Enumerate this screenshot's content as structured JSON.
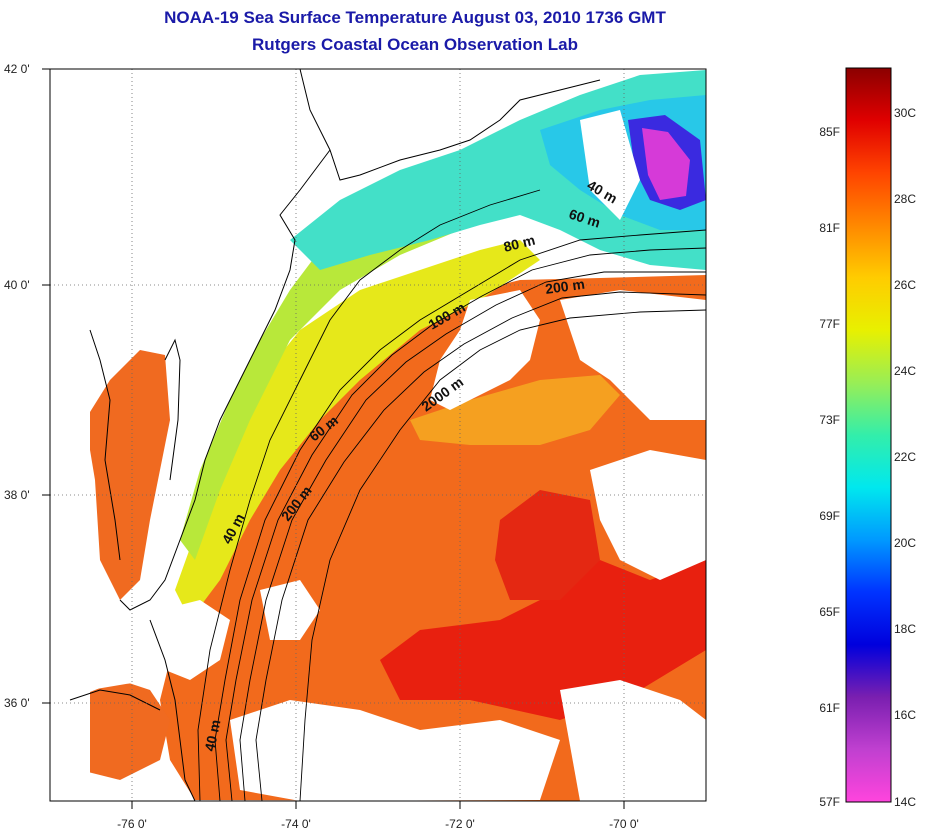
{
  "title_line1": "NOAA-19 Sea Surface Temperature August 03, 2010 1736 GMT",
  "title_line2": "Rutgers Coastal Ocean Observation Lab",
  "map": {
    "lat_labels": [
      "42 0'",
      "40 0'",
      "38 0'",
      "36 0'"
    ],
    "lon_labels": [
      "-76 0'",
      "-74 0'",
      "-72 0'",
      "-70 0'"
    ],
    "contour_labels": [
      "40 m",
      "60 m",
      "80 m",
      "200 m",
      "100 m",
      "60 m",
      "2000 m",
      "200 m",
      "40 m",
      "40 m"
    ],
    "colors": {
      "land_cloud": "#ffffff",
      "coast": "#000000",
      "gridline": "#555555"
    }
  },
  "colorbar": {
    "fahrenheit_labels": [
      "85F",
      "81F",
      "77F",
      "73F",
      "69F",
      "65F",
      "61F",
      "57F"
    ],
    "celsius_labels": [
      "30C",
      "28C",
      "26C",
      "24C",
      "22C",
      "20C",
      "18C",
      "16C",
      "14C"
    ],
    "gradient_colors": [
      "#8b0000",
      "#e00000",
      "#ff4400",
      "#ff8800",
      "#ffcc00",
      "#e8f000",
      "#99ee55",
      "#33eeaa",
      "#00e8ee",
      "#0099ff",
      "#0033ff",
      "#0000dd",
      "#7a1fb0",
      "#c040d0",
      "#ff44dd"
    ]
  }
}
